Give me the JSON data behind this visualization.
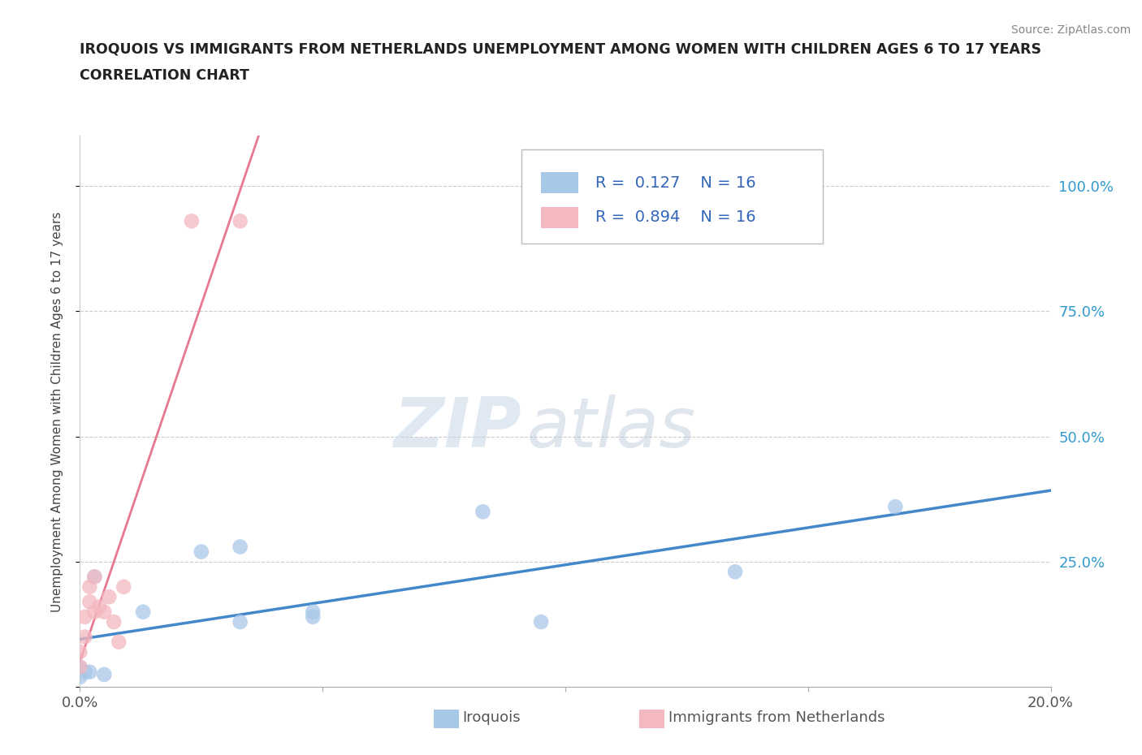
{
  "title_line1": "IROQUOIS VS IMMIGRANTS FROM NETHERLANDS UNEMPLOYMENT AMONG WOMEN WITH CHILDREN AGES 6 TO 17 YEARS",
  "title_line2": "CORRELATION CHART",
  "source": "Source: ZipAtlas.com",
  "ylabel": "Unemployment Among Women with Children Ages 6 to 17 years",
  "xlim": [
    0.0,
    0.2
  ],
  "ylim": [
    0.0,
    1.1
  ],
  "blue_color": "#a8c8e8",
  "blue_line_color": "#4488cc",
  "pink_color": "#f4b8c0",
  "pink_line_color": "#e87890",
  "iroquois_x": [
    0.0,
    0.0,
    0.001,
    0.002,
    0.003,
    0.005,
    0.013,
    0.025,
    0.033,
    0.033,
    0.048,
    0.048,
    0.083,
    0.095,
    0.135,
    0.168
  ],
  "iroquois_y": [
    0.04,
    0.02,
    0.03,
    0.03,
    0.22,
    0.025,
    0.15,
    0.27,
    0.28,
    0.13,
    0.15,
    0.14,
    0.35,
    0.13,
    0.23,
    0.36
  ],
  "netherlands_x": [
    0.0,
    0.0,
    0.001,
    0.001,
    0.002,
    0.002,
    0.003,
    0.003,
    0.004,
    0.005,
    0.006,
    0.007,
    0.008,
    0.009,
    0.023,
    0.033
  ],
  "netherlands_y": [
    0.04,
    0.07,
    0.1,
    0.14,
    0.17,
    0.2,
    0.22,
    0.15,
    0.16,
    0.15,
    0.18,
    0.13,
    0.09,
    0.2,
    0.93,
    0.93
  ],
  "blue_R": 0.127,
  "blue_N": 16,
  "pink_R": 0.894,
  "pink_N": 16,
  "watermark_zip": "ZIP",
  "watermark_atlas": "atlas",
  "legend_iroquois": "Iroquois",
  "legend_netherlands": "Immigrants from Netherlands"
}
